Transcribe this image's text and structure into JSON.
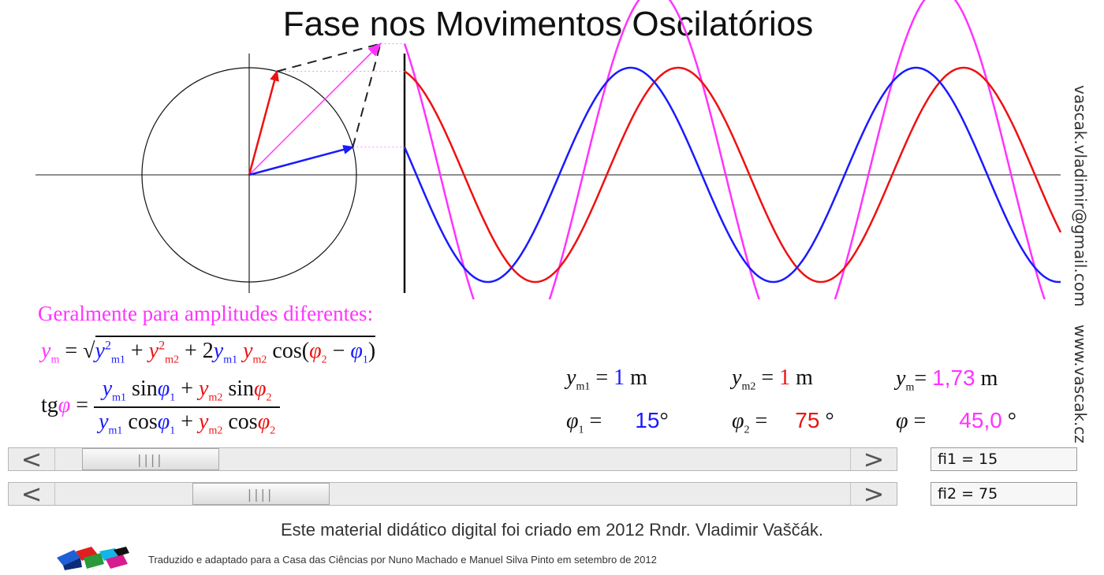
{
  "title": "Fase nos Movimentos Oscilatórios",
  "side_email": "vascak.vladimir@gmail.com",
  "side_site": "www.vascak.cz",
  "colors": {
    "resultant": "#ff33ff",
    "wave1": "#1a1aff",
    "wave2": "#ee1111"
  },
  "phasor": {
    "fi1_deg": 15,
    "fi2_deg": 75,
    "fi_deg": 45.0,
    "ym1": 1,
    "ym2": 1,
    "ym": 1.73
  },
  "heading": "Geralmente para amplitudes diferentes:",
  "values": {
    "ym1_num": "1",
    "ym1_unit": "m",
    "ym2_num": "1",
    "ym2_unit": "m",
    "ym_num": "1,73",
    "ym_unit": "m",
    "fi1_num": "15",
    "fi1_unit": "°",
    "fi2_num": "75",
    "fi2_unit": "°",
    "fi_num": "45,0",
    "fi_unit": "°"
  },
  "sliders": {
    "fi1": {
      "field_text": "fi1 = 15",
      "value": 15
    },
    "fi2": {
      "field_text": "fi2 = 75",
      "value": 75
    },
    "arrow_left": "<",
    "arrow_right": ">",
    "grip": "||||"
  },
  "credit": "Este material didático digital foi criado em 2012 Rndr. Vladimir Vaščák.",
  "translation": "Traduzido e adaptado para a Casa das Ciências por Nuno Machado e Manuel Silva Pinto em setembro de 2012"
}
